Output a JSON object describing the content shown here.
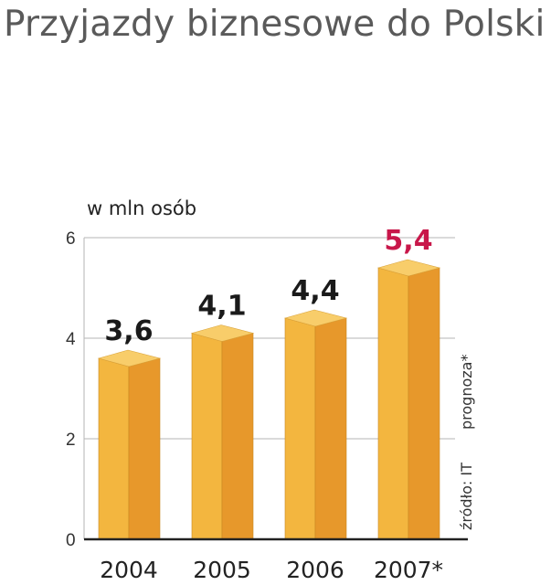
{
  "title": "Przyjazdy biznesowe do Polski",
  "unit_label": "w mln osób",
  "source_note": "źródło: IT",
  "forecast_note": "prognoza*",
  "colors": {
    "bar_front": "#f3b63f",
    "bar_side": "#e7982b",
    "bar_top": "#f8cd6a",
    "label_default": "#1a1a1a",
    "label_highlight": "#c8174a",
    "axis": "#222222",
    "grid": "#b5b5b5"
  },
  "chart_data": {
    "type": "bar",
    "title": "Przyjazdy biznesowe do Polski",
    "ylabel": "w mln osób",
    "xlabel": "",
    "ylim": [
      0,
      6
    ],
    "yticks": [
      0,
      2,
      4,
      6
    ],
    "grid": true,
    "categories": [
      "2004",
      "2005",
      "2006",
      "2007*"
    ],
    "values": [
      3.6,
      4.1,
      4.4,
      5.4
    ],
    "value_labels": [
      "3,6",
      "4,1",
      "4,4",
      "5,4"
    ],
    "highlight_index": 3
  }
}
